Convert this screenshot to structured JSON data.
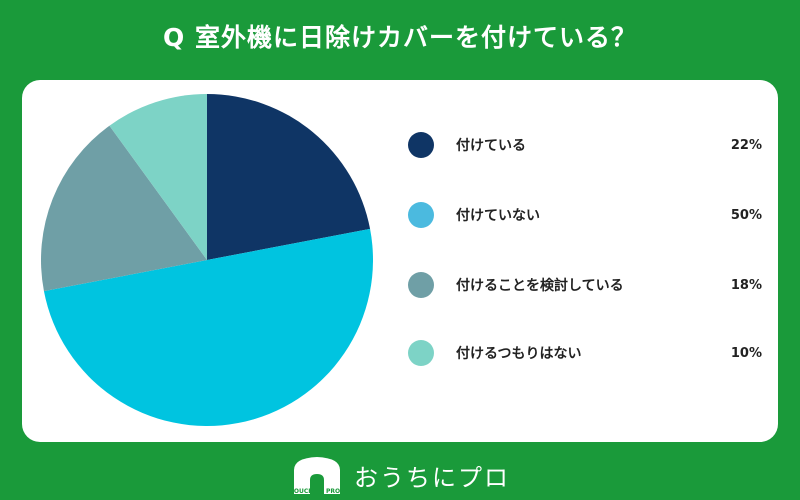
{
  "title": "Q 室外機に日除けカバーを付けている？",
  "brand": {
    "logo_text": "おうちにプロ",
    "logo_mark_text": "OUCHI ni PRO",
    "icon": "house-icon"
  },
  "colors": {
    "background": "#1a9a3a",
    "card": "#ffffff"
  },
  "chart_data": {
    "type": "pie",
    "title": "Q 室外機に日除けカバーを付けている？",
    "categories": [
      "付けている",
      "付けていない",
      "付けることを検討している",
      "付けるつもりはない"
    ],
    "values": [
      22,
      50,
      18,
      10
    ],
    "value_labels": [
      "22%",
      "50%",
      "18%",
      "10%"
    ],
    "colors": [
      "#0f3565",
      "#00c4e0",
      "#6f9fa6",
      "#7dd3c6"
    ],
    "legend_placement": "right",
    "start_angle_deg": 0,
    "direction": "clockwise"
  },
  "legend": [
    {
      "label": "付けている",
      "pct": "22%",
      "color": "#0f3565"
    },
    {
      "label": "付けていない",
      "pct": "50%",
      "color": "#4bbadf"
    },
    {
      "label": "付けることを検討している",
      "pct": "18%",
      "color": "#6f9fa6"
    },
    {
      "label": "付けるつもりはない",
      "pct": "10%",
      "color": "#7dd3c6"
    }
  ]
}
